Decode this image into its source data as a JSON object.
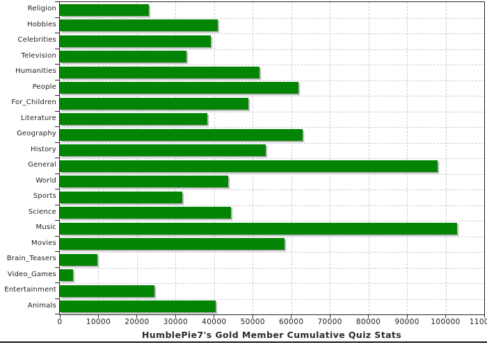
{
  "chart_data": {
    "type": "bar",
    "orientation": "horizontal",
    "title": "HumblePie7's Gold Member Cumulative Quiz Stats",
    "categories": [
      "Religion",
      "Hobbies",
      "Celebrities",
      "Television",
      "Humanities",
      "People",
      "For_Children",
      "Literature",
      "Geography",
      "History",
      "General",
      "World",
      "Sports",
      "Science",
      "Music",
      "Movies",
      "Brain_Teasers",
      "Video_Games",
      "Entertainment",
      "Animals"
    ],
    "values": [
      23000,
      41000,
      39200,
      32800,
      51800,
      61800,
      48900,
      38300,
      63000,
      53300,
      97900,
      43600,
      31700,
      44400,
      102900,
      58300,
      9700,
      3500,
      24600,
      40400
    ],
    "xlabel": "",
    "ylabel": "",
    "xlim": [
      0,
      110000
    ],
    "x_tick_step": 10000,
    "x_tick_labels": [
      "0",
      "10000",
      "20000",
      "30000",
      "40000",
      "50000",
      "60000",
      "70000",
      "80000",
      "90000",
      "100000",
      "110000"
    ],
    "grid": "dashed",
    "legend": "none",
    "bar_color": "#048404",
    "bar_shadow_color": "#b5b5b5",
    "gridline_color": "#c9cdd1",
    "axis_color": "#242424",
    "title_color": "#2b2b2b"
  }
}
